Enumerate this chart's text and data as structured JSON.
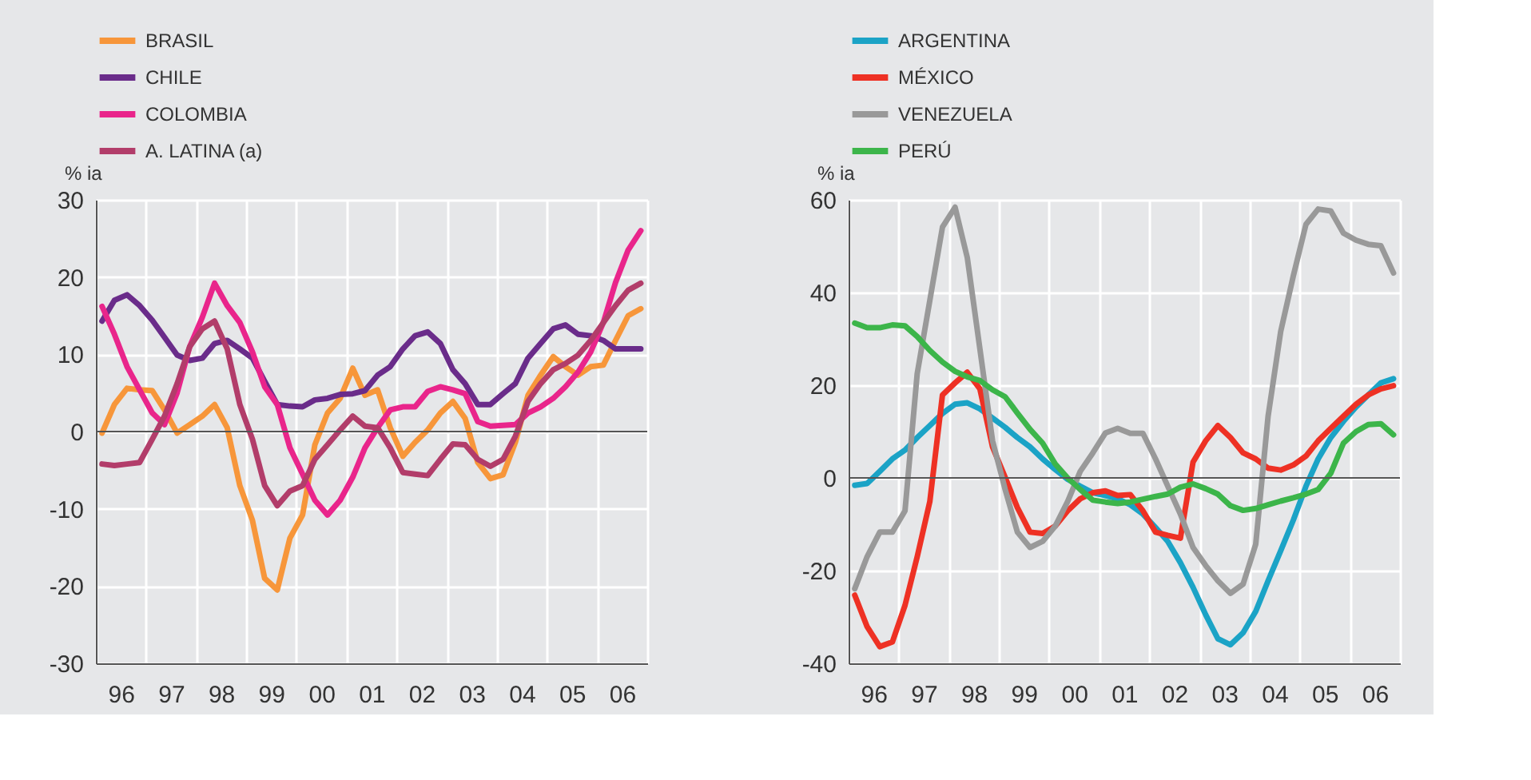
{
  "chart_data": [
    {
      "type": "line",
      "ylabel": "% ia",
      "legend": "top left",
      "grid": true,
      "line_style": "solid",
      "marker": "none",
      "xlim": [
        "1996-01-01",
        "2007-01-01"
      ],
      "ylim": [
        -30,
        30
      ],
      "yticks": [
        -30,
        -20,
        -10,
        0,
        10,
        20,
        30
      ],
      "xticks": [
        {
          "value": "1996-01-01",
          "label": null
        },
        {
          "value": "1996-07-01",
          "label": "96"
        },
        {
          "value": "1997-01-01",
          "label": null
        },
        {
          "value": "1997-07-01",
          "label": "97"
        },
        {
          "value": "1998-01-01",
          "label": null
        },
        {
          "value": "1998-07-01",
          "label": "98"
        },
        {
          "value": "1999-01-01",
          "label": null
        },
        {
          "value": "1999-07-01",
          "label": "99"
        },
        {
          "value": "2000-01-01",
          "label": null
        },
        {
          "value": "2000-07-01",
          "label": "00"
        },
        {
          "value": "2001-01-01",
          "label": null
        },
        {
          "value": "2001-07-01",
          "label": "01"
        },
        {
          "value": "2002-01-01",
          "label": null
        },
        {
          "value": "2002-07-01",
          "label": "02"
        },
        {
          "value": "2003-01-01",
          "label": null
        },
        {
          "value": "2003-07-01",
          "label": "03"
        },
        {
          "value": "2004-01-01",
          "label": null
        },
        {
          "value": "2004-07-01",
          "label": "04"
        },
        {
          "value": "2005-01-01",
          "label": null
        },
        {
          "value": "2005-07-01",
          "label": "05"
        },
        {
          "value": "2006-01-01",
          "label": null
        },
        {
          "value": "2006-07-01",
          "label": "06"
        },
        {
          "value": "2007-01-01",
          "label": null
        }
      ],
      "ref_lines": [
        {
          "axis": "y",
          "value": 0,
          "color": "#555555"
        }
      ],
      "x": [
        "1996-02-15",
        "1996-05-15",
        "1996-08-15",
        "1996-11-15",
        "1997-02-15",
        "1997-05-15",
        "1997-08-15",
        "1997-11-15",
        "1998-02-15",
        "1998-05-15",
        "1998-08-15",
        "1998-11-15",
        "1999-02-15",
        "1999-05-15",
        "1999-08-15",
        "1999-11-15",
        "2000-02-15",
        "2000-05-15",
        "2000-08-15",
        "2000-11-15",
        "2001-02-15",
        "2001-05-15",
        "2001-08-15",
        "2001-11-15",
        "2002-02-15",
        "2002-05-15",
        "2002-08-15",
        "2002-11-15",
        "2003-02-15",
        "2003-05-15",
        "2003-08-15",
        "2003-11-15",
        "2004-02-15",
        "2004-05-15",
        "2004-08-15",
        "2004-11-15",
        "2005-02-15",
        "2005-05-15",
        "2005-08-15",
        "2005-11-15",
        "2006-02-15",
        "2006-05-15",
        "2006-08-15",
        "2006-11-15"
      ],
      "series": [
        {
          "name": "BRASIL",
          "color": "#f7963a",
          "values": [
            -0.2,
            3.5,
            5.6,
            5.4,
            5.3,
            2.8,
            -0.2,
            0.9,
            2,
            3.5,
            0.5,
            -7,
            -11.5,
            -19,
            -20.5,
            -13.8,
            -10.8,
            -1.7,
            2.4,
            4.3,
            8.2,
            4.7,
            5.4,
            0.5,
            -3.2,
            -1.4,
            0.2,
            2.4,
            3.9,
            1.7,
            -4,
            -6.1,
            -5.6,
            -1.4,
            4.7,
            7.3,
            9.7,
            8.4,
            7.3,
            8.4,
            8.6,
            11.8,
            15,
            15.9
          ]
        },
        {
          "name": "CHILE",
          "color": "#6a2c8a",
          "values": [
            14.3,
            17,
            17.7,
            16.3,
            14.4,
            12.2,
            9.9,
            9.2,
            9.5,
            11.4,
            11.8,
            10.7,
            9.5,
            6.5,
            3.5,
            3.3,
            3.2,
            4.1,
            4.3,
            4.8,
            4.9,
            5.3,
            7.3,
            8.4,
            10.7,
            12.4,
            12.9,
            11.4,
            8,
            6.2,
            3.5,
            3.5,
            4.9,
            6.2,
            9.5,
            11.4,
            13.3,
            13.8,
            12.6,
            12.4,
            11.8,
            10.7,
            10.7,
            10.7
          ]
        },
        {
          "name": "COLOMBIA",
          "color": "#e9258b",
          "values": [
            16.2,
            12.6,
            8.4,
            5.4,
            2.4,
            0.9,
            5,
            11,
            14.8,
            19.2,
            16.3,
            14.1,
            10.3,
            5.8,
            3.5,
            -2.1,
            -5.5,
            -8.9,
            -10.8,
            -8.9,
            -5.9,
            -2.1,
            0.5,
            2.8,
            3.2,
            3.2,
            5.2,
            5.8,
            5.4,
            4.9,
            1.3,
            0.7,
            0.8,
            0.9,
            2.4,
            3.2,
            4.3,
            5.8,
            7.7,
            10.3,
            14.1,
            19.3,
            23.5,
            26
          ]
        },
        {
          "name": "A. LATINA (a)",
          "color": "#b23d6a",
          "values": [
            -4.2,
            -4.4,
            -4.2,
            -4,
            -1,
            2,
            6.2,
            11,
            13.3,
            14.3,
            10.7,
            3.5,
            -1,
            -7,
            -9.6,
            -7.7,
            -7,
            -3.6,
            -1.7,
            0.2,
            2,
            0.7,
            0.5,
            -2.1,
            -5.3,
            -5.5,
            -5.7,
            -3.6,
            -1.6,
            -1.7,
            -3.6,
            -4.5,
            -3.6,
            -0.6,
            3.9,
            6.2,
            8,
            8.8,
            9.9,
            11.8,
            14.1,
            16.3,
            18.3,
            19.2
          ]
        }
      ]
    },
    {
      "type": "line",
      "ylabel": "% ia",
      "legend": "top left",
      "grid": true,
      "line_style": "solid",
      "marker": "none",
      "xlim": [
        "1996-01-01",
        "2007-01-01"
      ],
      "ylim": [
        -40,
        60
      ],
      "yticks": [
        -40,
        -20,
        0,
        20,
        40,
        60
      ],
      "xticks": [
        {
          "value": "1996-01-01",
          "label": null
        },
        {
          "value": "1996-07-01",
          "label": "96"
        },
        {
          "value": "1997-01-01",
          "label": null
        },
        {
          "value": "1997-07-01",
          "label": "97"
        },
        {
          "value": "1998-01-01",
          "label": null
        },
        {
          "value": "1998-07-01",
          "label": "98"
        },
        {
          "value": "1999-01-01",
          "label": null
        },
        {
          "value": "1999-07-01",
          "label": "99"
        },
        {
          "value": "2000-01-01",
          "label": null
        },
        {
          "value": "2000-07-01",
          "label": "00"
        },
        {
          "value": "2001-01-01",
          "label": null
        },
        {
          "value": "2001-07-01",
          "label": "01"
        },
        {
          "value": "2002-01-01",
          "label": null
        },
        {
          "value": "2002-07-01",
          "label": "02"
        },
        {
          "value": "2003-01-01",
          "label": null
        },
        {
          "value": "2003-07-01",
          "label": "03"
        },
        {
          "value": "2004-01-01",
          "label": null
        },
        {
          "value": "2004-07-01",
          "label": "04"
        },
        {
          "value": "2005-01-01",
          "label": null
        },
        {
          "value": "2005-07-01",
          "label": "05"
        },
        {
          "value": "2006-01-01",
          "label": null
        },
        {
          "value": "2006-07-01",
          "label": "06"
        },
        {
          "value": "2007-01-01",
          "label": null
        }
      ],
      "ref_lines": [
        {
          "axis": "y",
          "value": 0,
          "color": "#555555"
        }
      ],
      "x": [
        "1996-02-15",
        "1996-05-15",
        "1996-08-15",
        "1996-11-15",
        "1997-02-15",
        "1997-05-15",
        "1997-08-15",
        "1997-11-15",
        "1998-02-15",
        "1998-05-15",
        "1998-08-15",
        "1998-11-15",
        "1999-02-15",
        "1999-05-15",
        "1999-08-15",
        "1999-11-15",
        "2000-02-15",
        "2000-05-15",
        "2000-08-15",
        "2000-11-15",
        "2001-02-15",
        "2001-05-15",
        "2001-08-15",
        "2001-11-15",
        "2002-02-15",
        "2002-05-15",
        "2002-08-15",
        "2002-11-15",
        "2003-02-15",
        "2003-05-15",
        "2003-08-15",
        "2003-11-15",
        "2004-02-15",
        "2004-05-15",
        "2004-08-15",
        "2004-11-15",
        "2005-02-15",
        "2005-05-15",
        "2005-08-15",
        "2005-11-15",
        "2006-02-15",
        "2006-05-15",
        "2006-08-15",
        "2006-11-15"
      ],
      "series": [
        {
          "name": "ARGENTINA",
          "color": "#1ba3c6",
          "values": [
            -1.6,
            -1.2,
            1.4,
            4.1,
            6,
            8.7,
            11.3,
            13.9,
            15.9,
            16.2,
            14.9,
            12.9,
            10.9,
            8.7,
            6.7,
            4.1,
            1.8,
            -0.3,
            -1.8,
            -3.2,
            -3.8,
            -4.5,
            -5.8,
            -7.8,
            -10.7,
            -13.7,
            -18.3,
            -23.6,
            -29.5,
            -34.7,
            -36,
            -33.4,
            -28.8,
            -22.2,
            -15.7,
            -9.1,
            -1.8,
            4.1,
            8.7,
            12.2,
            15.3,
            17.9,
            20.5,
            21.4
          ]
        },
        {
          "name": "MÉXICO",
          "color": "#ee3124",
          "values": [
            -25.3,
            -32.1,
            -36.4,
            -35.4,
            -27.5,
            -17,
            -5.1,
            17.9,
            20.5,
            22.8,
            19.2,
            6.7,
            0.1,
            -6.4,
            -11.7,
            -12,
            -10.4,
            -7.1,
            -4.5,
            -3.2,
            -2.8,
            -3.8,
            -3.6,
            -7.1,
            -11.7,
            -12.4,
            -13,
            3.4,
            8,
            11.3,
            8.7,
            5.4,
            4.1,
            2.1,
            1.7,
            2.8,
            4.7,
            8,
            10.7,
            13.3,
            15.9,
            17.9,
            19.2,
            19.9
          ]
        },
        {
          "name": "VENEZUELA",
          "color": "#999999",
          "values": [
            -23.9,
            -17,
            -11.7,
            -11.7,
            -7.1,
            22.5,
            38.3,
            54.1,
            58.4,
            47.5,
            27.8,
            8,
            -2.5,
            -11.7,
            -15,
            -13.7,
            -10.4,
            -5.1,
            1.4,
            5.4,
            9.7,
            10.7,
            9.6,
            9.6,
            4.1,
            -1.8,
            -7.8,
            -15,
            -18.9,
            -22.2,
            -24.9,
            -22.9,
            -14.3,
            13.3,
            31.6,
            43.6,
            54.7,
            58,
            57.6,
            52.8,
            51.3,
            50.4,
            50.1,
            44.2
          ]
        },
        {
          "name": "PERÚ",
          "color": "#3cb54a",
          "values": [
            33.4,
            32.4,
            32.4,
            33,
            32.8,
            30.5,
            27.5,
            25,
            23,
            21.8,
            21,
            19,
            17.5,
            14,
            10.5,
            7.5,
            3,
            0,
            -2.5,
            -4.8,
            -5.2,
            -5.5,
            -5.2,
            -4.6,
            -4,
            -3.5,
            -2,
            -1.3,
            -2.3,
            -3.5,
            -6,
            -7,
            -6.6,
            -5.8,
            -5,
            -4.3,
            -3.5,
            -2.5,
            1,
            7.5,
            10,
            11.5,
            11.7,
            9.3
          ]
        }
      ]
    }
  ]
}
